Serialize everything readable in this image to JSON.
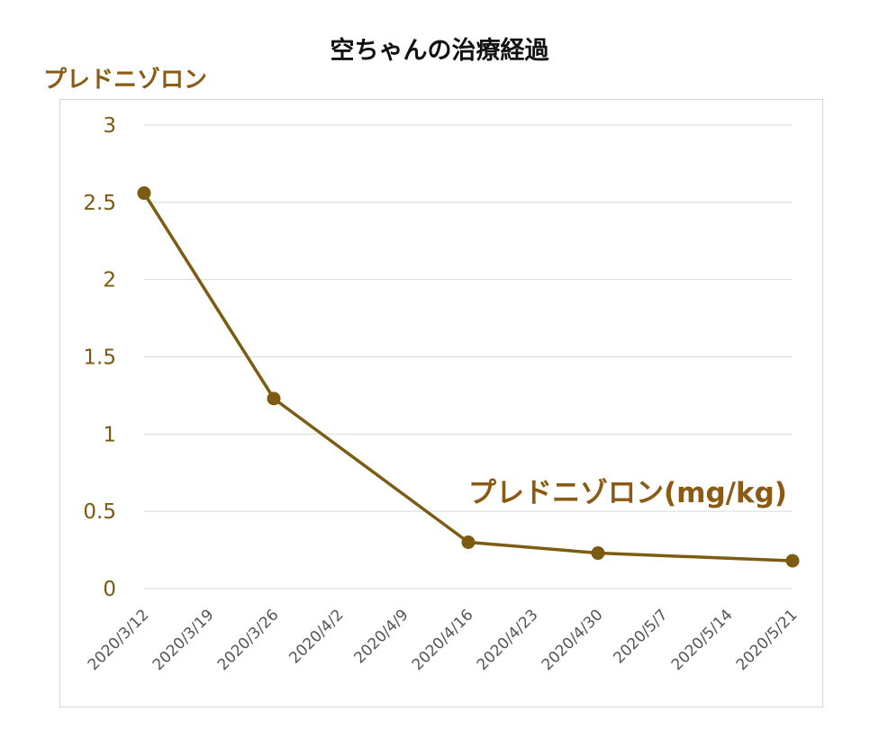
{
  "chart_data": {
    "type": "line",
    "title": "空ちゃんの治療経過",
    "ylabel": "プレドニゾロン",
    "xlabel": "",
    "x_ticks": [
      "2020/3/12",
      "2020/3/19",
      "2020/3/26",
      "2020/4/2",
      "2020/4/9",
      "2020/4/16",
      "2020/4/23",
      "2020/4/30",
      "2020/5/7",
      "2020/5/14",
      "2020/5/21"
    ],
    "y_ticks": [
      "0",
      "0.5",
      "1",
      "1.5",
      "2",
      "2.5",
      "3"
    ],
    "ylim": [
      0,
      3
    ],
    "xlim": [
      "2020/3/12",
      "2020/5/21"
    ],
    "grid": "horizontal",
    "legend": "none",
    "series": [
      {
        "name": "プレドニゾロン(mg/kg)",
        "color": "#7d5b12",
        "x": [
          "2020/3/12",
          "2020/3/26",
          "2020/4/16",
          "2020/4/30",
          "2020/5/21"
        ],
        "values": [
          2.56,
          1.23,
          0.3,
          0.23,
          0.18
        ]
      }
    ]
  },
  "colors": {
    "axis_text": "#7a5a12",
    "series": "#7d5b12",
    "label_text": "#8b5a14",
    "grid": "#d9d9d9"
  }
}
